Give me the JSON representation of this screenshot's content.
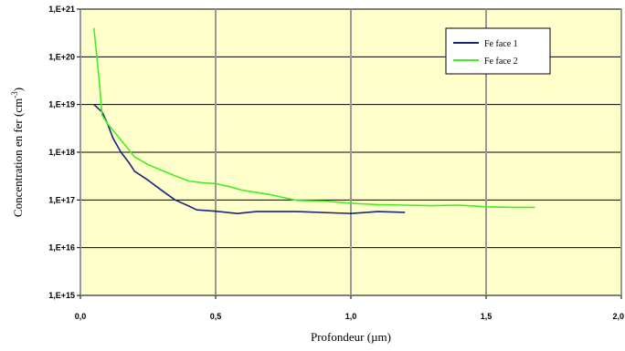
{
  "chart_data": {
    "type": "line",
    "title": "",
    "xlabel": "Profondeur (µm)",
    "ylabel": "Concentration en fer (cm",
    "ylabel_sup": "-3",
    "ylabel_end": ")",
    "y_scale": "log",
    "xlim": [
      0,
      2
    ],
    "ylim": [
      1000000000000000.0,
      1e+21
    ],
    "x_ticks": [
      0,
      0.5,
      1.0,
      1.5,
      2.0
    ],
    "x_tick_labels": [
      "0,0",
      "0,5",
      "1,0",
      "1,5",
      "2,0"
    ],
    "y_ticks": [
      1000000000000000.0,
      1e+16,
      1e+17,
      1e+18,
      1e+19,
      1e+20,
      1e+21
    ],
    "y_tick_labels": [
      "1,E+15",
      "1,E+16",
      "1,E+17",
      "1,E+18",
      "1,E+19",
      "1,E+20",
      "1,E+21"
    ],
    "grid": true,
    "plot_background": "#ffffcc",
    "legend_position": "top-right",
    "series": [
      {
        "name": "Fe face 1",
        "color": "#1a237e",
        "x": [
          0.05,
          0.08,
          0.1,
          0.12,
          0.15,
          0.18,
          0.2,
          0.25,
          0.3,
          0.35,
          0.4,
          0.43,
          0.5,
          0.58,
          0.65,
          0.8,
          1.0,
          1.1,
          1.2
        ],
        "y": [
          1e+19,
          7e+18,
          4e+18,
          2e+18,
          1e+18,
          6e+17,
          4e+17,
          2.6e+17,
          1.6e+17,
          1e+17,
          7.5e+16,
          6.2e+16,
          5.8e+16,
          5.2e+16,
          5.7e+16,
          5.7e+16,
          5.2e+16,
          5.7e+16,
          5.5e+16
        ]
      },
      {
        "name": "Fe face 2",
        "color": "#44ee22",
        "x": [
          0.05,
          0.07,
          0.08,
          0.1,
          0.15,
          0.2,
          0.25,
          0.3,
          0.35,
          0.4,
          0.45,
          0.5,
          0.55,
          0.6,
          0.7,
          0.8,
          0.9,
          1.0,
          1.1,
          1.2,
          1.3,
          1.4,
          1.45,
          1.5,
          1.6,
          1.68
        ],
        "y": [
          4e+20,
          3e+19,
          6e+18,
          4e+18,
          1.8e+18,
          8e+17,
          5.5e+17,
          4.2e+17,
          3.2e+17,
          2.5e+17,
          2.3e+17,
          2.2e+17,
          1.9e+17,
          1.6e+17,
          1.3e+17,
          9.8e+16,
          9.5e+16,
          8.5e+16,
          8e+16,
          7.8e+16,
          7.6e+16,
          7.8e+16,
          7.5e+16,
          7.2e+16,
          7e+16,
          7e+16
        ]
      }
    ]
  }
}
